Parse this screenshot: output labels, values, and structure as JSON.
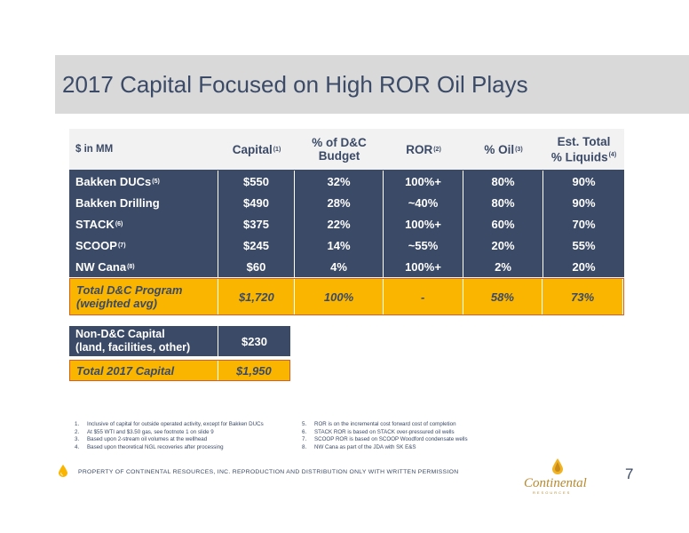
{
  "title": "2017 Capital Focused on High ROR Oil Plays",
  "table": {
    "header": {
      "label": "$ in MM",
      "capital": "Capital",
      "capital_sup": "(1)",
      "pct_dc_line1": "% of D&C",
      "pct_dc_line2": "Budget",
      "ror": "ROR",
      "ror_sup": "(2)",
      "oil": "% Oil",
      "oil_sup": "(3)",
      "liquids_line1": "Est. Total",
      "liquids_line2": "% Liquids",
      "liquids_sup": "(4)"
    },
    "rows": [
      {
        "name": "Bakken DUCs",
        "sup": "(5)",
        "capital": "$550",
        "pct": "32%",
        "ror": "100%+",
        "oil": "80%",
        "liquids": "90%"
      },
      {
        "name": "Bakken Drilling",
        "sup": "",
        "capital": "$490",
        "pct": "28%",
        "ror": "~40%",
        "oil": "80%",
        "liquids": "90%"
      },
      {
        "name": "STACK",
        "sup": "(6)",
        "capital": "$375",
        "pct": "22%",
        "ror": "100%+",
        "oil": "60%",
        "liquids": "70%"
      },
      {
        "name": "SCOOP",
        "sup": "(7)",
        "capital": "$245",
        "pct": "14%",
        "ror": "~55%",
        "oil": "20%",
        "liquids": "55%"
      },
      {
        "name": "NW Cana",
        "sup": "(8)",
        "capital": "$60",
        "pct": "4%",
        "ror": "100%+",
        "oil": "2%",
        "liquids": "20%"
      }
    ],
    "total": {
      "name_line1": "Total D&C Program",
      "name_line2": "(weighted avg)",
      "capital": "$1,720",
      "pct": "100%",
      "ror": "-",
      "oil": "58%",
      "liquids": "73%"
    }
  },
  "non_dc": {
    "name_line1": "Non-D&C Capital",
    "name_line2": "(land, facilities, other)",
    "capital": "$230"
  },
  "total_capital": {
    "name": "Total 2017 Capital",
    "capital": "$1,950"
  },
  "footnotes_left": [
    {
      "num": "1.",
      "text": "Inclusive of capital for outside operated activity, except for Bakken DUCs"
    },
    {
      "num": "2.",
      "text": "At $55 WTI and $3.50 gas, see footnote 1 on slide 9"
    },
    {
      "num": "3.",
      "text": "Based upon 2-stream oil volumes at the wellhead"
    },
    {
      "num": "4.",
      "text": "Based upon theoretical NGL recoveries after processing"
    }
  ],
  "footnotes_right": [
    {
      "num": "5.",
      "text": "ROR is on the incremental cost forward cost of completion"
    },
    {
      "num": "6.",
      "text": "STACK ROR is based on STACK over-pressured oil wells"
    },
    {
      "num": "7.",
      "text": "SCOOP ROR is based on SCOOP Woodford condensate wells"
    },
    {
      "num": "8.",
      "text": "NW Cana as part of the JDA with SK E&S"
    }
  ],
  "footer": {
    "text": "PROPERTY OF CONTINENTAL RESOURCES, INC. REPRODUCTION AND DISTRIBUTION ONLY WITH WRITTEN PERMISSION",
    "page": "7",
    "logo_text": "Continental",
    "logo_sub": "RESOURCES"
  },
  "colors": {
    "navy": "#3b4a66",
    "gold": "#f9b500",
    "orange_border": "#e15a1e",
    "title_bar": "#d9d9d9"
  }
}
